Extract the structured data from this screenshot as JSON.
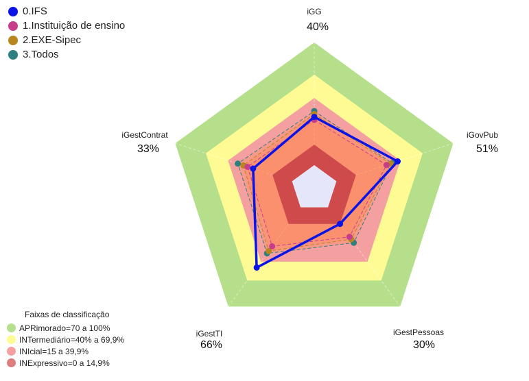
{
  "chart_data": {
    "type": "radar",
    "axes": [
      "iGG",
      "iGovPub",
      "iGestPessoas",
      "iGestTI",
      "iGestContrat"
    ],
    "axis_value_labels": [
      "40%",
      "51%",
      "30%",
      "66%",
      "33%"
    ],
    "rlim": [
      0,
      100
    ],
    "series": [
      {
        "name": "0.IFS",
        "color": "#0a14e6",
        "values": [
          49,
          60,
          30,
          67,
          44
        ]
      },
      {
        "name": "1.Instituição de ensino",
        "color": "#c83c8c",
        "values": [
          47,
          52,
          41,
          49,
          48
        ]
      },
      {
        "name": "2.EXE-Sipec",
        "color": "#b8861e",
        "values": [
          51,
          55,
          43,
          53,
          51
        ]
      },
      {
        "name": "3.Todos",
        "color": "#2e7f80",
        "values": [
          53,
          56,
          46,
          55,
          55
        ]
      }
    ],
    "bands_title": "Faixas de classificação",
    "bands": [
      {
        "label": "APRimorado=70 a 100%",
        "color": "#b5df8a",
        "outer": 100
      },
      {
        "label": "INTermediário=40% a 69,9%",
        "color": "#fffb94",
        "outer": 78
      },
      {
        "label": "INIcial=15 a 39,9%",
        "color": "#f4a0a0",
        "outer": 62
      },
      {
        "label": "INExpressivo=0 a 14,9%",
        "color": "#dd7d7d",
        "outer": 30
      }
    ],
    "center_color": "#e6e6fa",
    "center_outer": 16
  }
}
